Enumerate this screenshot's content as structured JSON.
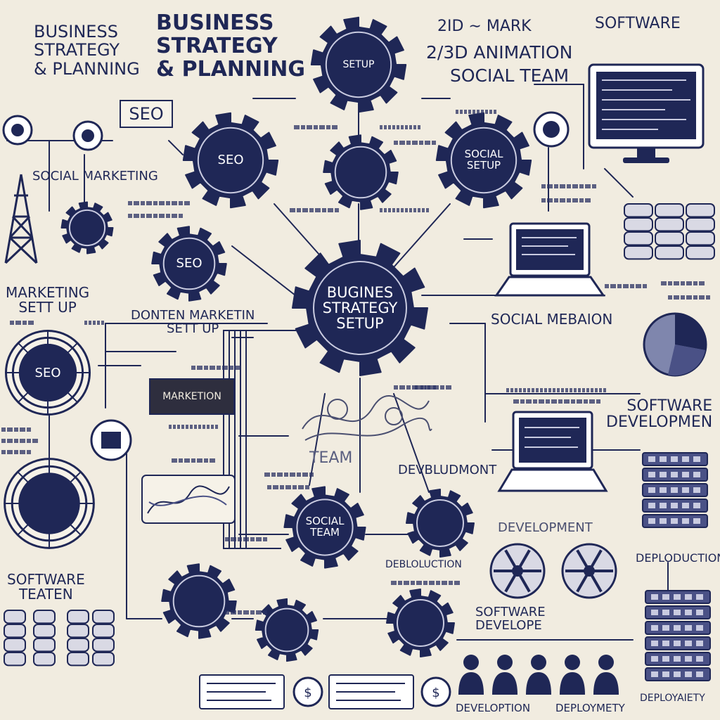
{
  "palette": {
    "navy": "#1f2756",
    "paper": "#f1ece0",
    "ink": "#2a3163",
    "white": "#ffffff"
  },
  "titles": {
    "top_left": "BUSINESS\nSTRATEGY\n& PLANNING",
    "top_center": "BUSINESS\nSTRATEGY\n& PLANNING",
    "top_right_1": "2ID ∼ MARK",
    "top_right_2": "2/3D ANIMATION",
    "top_right_3": "SOCIAL TEAM",
    "software_top": "SOFTWARE"
  },
  "labels": {
    "seo_box": "SEO",
    "social_marketing": "SOCIAL MARKETING",
    "marketing_setup": "MARKETING\nSETT UP",
    "content_marketing": "DONTEN MARKETIN\nSETT UP",
    "social_mediation": "SOCIAL MEBAION",
    "software_development": "SOFTWARE\nDEVELOPMEN",
    "team": "TEAM",
    "devbludmont": "DEVBLUDMONT",
    "development_mid": "DEVELOPMENT",
    "deploduction": "DEPLODUCTION",
    "software_team": "SOFTWARE\nTEATEN",
    "software_develope": "SOFTWARE\nDEVELOPE",
    "debloduction": "DEBLOLUCTION",
    "footer_1": "DEVELOPTION",
    "footer_2": "DEPLOYMETY",
    "footer_3": "DEPLOYAIETY",
    "dark_box": "MARKETION"
  },
  "gears": [
    {
      "id": "gear-setup-top",
      "text": "SETUP"
    },
    {
      "id": "gear-seo-1",
      "text": "SEO"
    },
    {
      "id": "gear-social-setup",
      "text": "SOCIAL\nSETUP"
    },
    {
      "id": "gear-seo-2",
      "text": "SEO"
    },
    {
      "id": "gear-business-setup",
      "text": "BUGINES\nSTRATEGY\nSETUP"
    },
    {
      "id": "gear-social-team",
      "text": "SOCIAL\nTEAM"
    },
    {
      "id": "gear-ring-seo",
      "text": "SEO"
    }
  ]
}
